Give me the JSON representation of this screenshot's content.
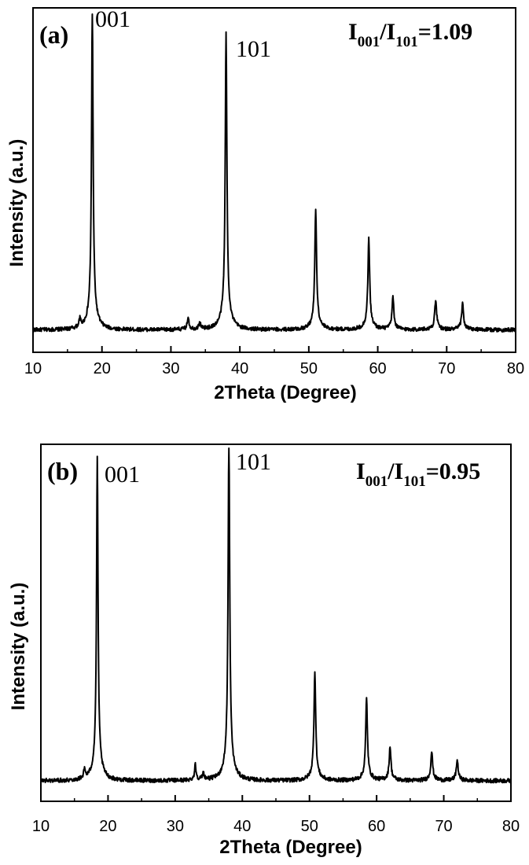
{
  "chart_data": [
    {
      "type": "line",
      "panel_label": "(a)",
      "xlabel": "2Theta (Degree)",
      "ylabel": "Intensity (a.u.)",
      "xlim": [
        10,
        80
      ],
      "ylim": [
        0,
        100
      ],
      "x_ticks": [
        "10",
        "20",
        "30",
        "40",
        "50",
        "60",
        "70",
        "80"
      ],
      "baseline": 3,
      "noise": 0.6,
      "peaks": [
        {
          "x": 16.8,
          "height": 2.5,
          "width": 0.15
        },
        {
          "x": 18.6,
          "height": 100,
          "width": 0.13
        },
        {
          "x": 32.5,
          "height": 4,
          "width": 0.13
        },
        {
          "x": 34.2,
          "height": 2,
          "width": 0.15
        },
        {
          "x": 38.0,
          "height": 91,
          "width": 0.14
        },
        {
          "x": 51.0,
          "height": 37,
          "width": 0.15
        },
        {
          "x": 58.7,
          "height": 28,
          "width": 0.15
        },
        {
          "x": 62.2,
          "height": 10,
          "width": 0.15
        },
        {
          "x": 68.4,
          "height": 9,
          "width": 0.16
        },
        {
          "x": 72.3,
          "height": 8,
          "width": 0.16
        }
      ],
      "annotations": {
        "peak_001": "001",
        "peak_101": "101",
        "ratio_base_a": "I",
        "ratio_sub_a": "001",
        "ratio_mid": "/I",
        "ratio_sub_b": "101",
        "ratio_value": "=1.09"
      }
    },
    {
      "type": "line",
      "panel_label": "(b)",
      "xlabel": "2Theta (Degree)",
      "ylabel": "Intensity (a.u.)",
      "xlim": [
        10,
        80
      ],
      "ylim": [
        0,
        100
      ],
      "x_ticks": [
        "10",
        "20",
        "30",
        "40",
        "50",
        "60",
        "70",
        "80"
      ],
      "baseline": 3,
      "noise": 0.6,
      "peaks": [
        {
          "x": 16.5,
          "height": 2.5,
          "width": 0.15
        },
        {
          "x": 18.4,
          "height": 94,
          "width": 0.13
        },
        {
          "x": 33.0,
          "height": 4.5,
          "width": 0.13
        },
        {
          "x": 34.2,
          "height": 2,
          "width": 0.15
        },
        {
          "x": 38.0,
          "height": 100,
          "width": 0.14
        },
        {
          "x": 50.8,
          "height": 32,
          "width": 0.15
        },
        {
          "x": 58.5,
          "height": 24,
          "width": 0.15
        },
        {
          "x": 62.0,
          "height": 10,
          "width": 0.15
        },
        {
          "x": 68.2,
          "height": 8.5,
          "width": 0.16
        },
        {
          "x": 72.0,
          "height": 6,
          "width": 0.16
        }
      ],
      "annotations": {
        "peak_001": "001",
        "peak_101": "101",
        "ratio_base_a": "I",
        "ratio_sub_a": "001",
        "ratio_mid": "/I",
        "ratio_sub_b": "101",
        "ratio_value": "=0.95"
      }
    }
  ]
}
